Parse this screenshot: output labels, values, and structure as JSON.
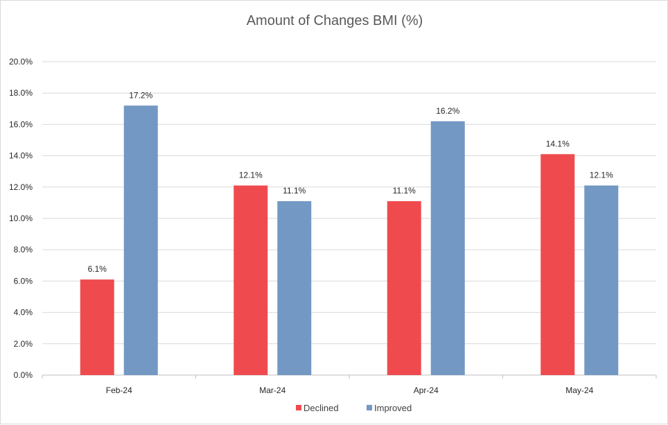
{
  "chart_data": {
    "type": "bar",
    "title": "Amount of Changes BMI (%)",
    "categories": [
      "Feb-24",
      "Mar-24",
      "Apr-24",
      "May-24"
    ],
    "series": [
      {
        "name": "Declined",
        "values": [
          6.1,
          12.1,
          11.1,
          14.1
        ],
        "labels": [
          "6.1%",
          "12.1%",
          "11.1%",
          "14.1%"
        ],
        "color": "#ef4b4e"
      },
      {
        "name": "Improved",
        "values": [
          17.2,
          11.1,
          16.2,
          12.1
        ],
        "labels": [
          "17.2%",
          "11.1%",
          "16.2%",
          "12.1%"
        ],
        "color": "#7398c3"
      }
    ],
    "ylim": [
      0,
      20
    ],
    "yticks": [
      0,
      2,
      4,
      6,
      8,
      10,
      12,
      14,
      16,
      18,
      20
    ],
    "ytick_labels": [
      "0.0%",
      "2.0%",
      "4.0%",
      "6.0%",
      "8.0%",
      "10.0%",
      "12.0%",
      "14.0%",
      "16.0%",
      "18.0%",
      "20.0%"
    ],
    "grid": true,
    "legend": "bottom-center",
    "colors": {
      "grid": "#d9d9d9",
      "axis": "#bfbfbf"
    }
  }
}
